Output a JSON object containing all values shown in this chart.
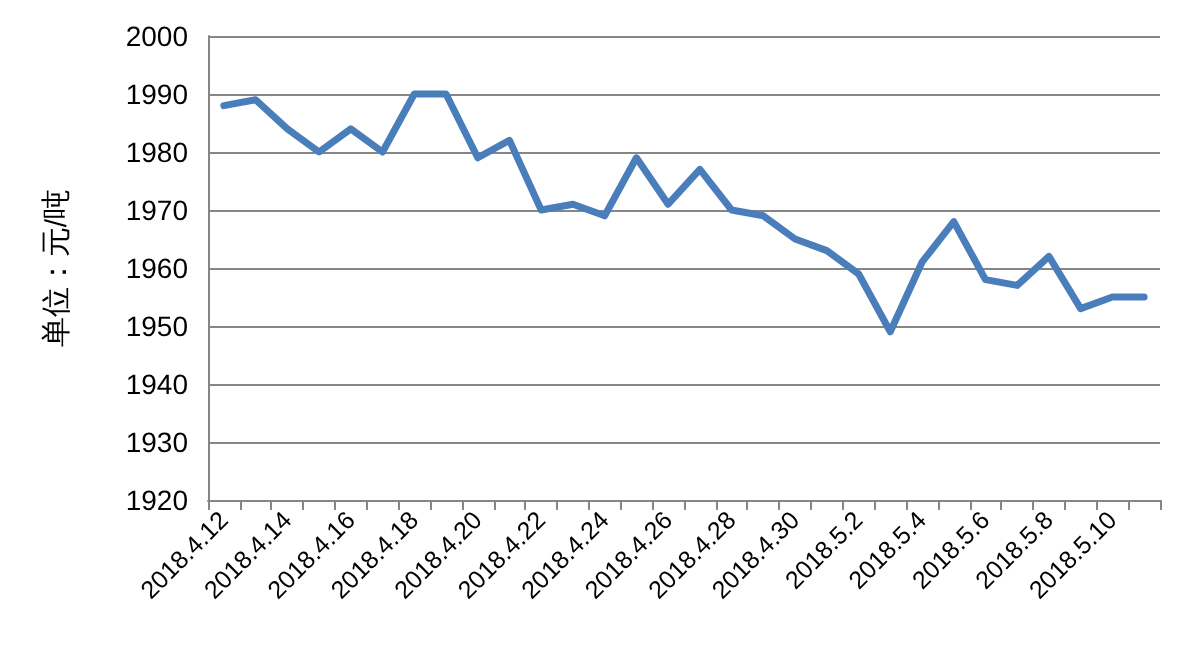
{
  "chart_data": {
    "type": "line",
    "ylabel": "单位：元/吨",
    "categories": [
      "2018.4.12",
      null,
      "2018.4.14",
      null,
      "2018.4.16",
      null,
      "2018.4.18",
      null,
      "2018.4.20",
      null,
      "2018.4.22",
      null,
      "2018.4.24",
      null,
      "2018.4.26",
      null,
      "2018.4.28",
      null,
      "2018.4.30",
      null,
      "2018.5.2",
      null,
      "2018.5.4",
      null,
      "2018.5.6",
      null,
      "2018.5.8",
      null,
      "2018.5.10",
      null
    ],
    "series": [
      {
        "color": "#4a7ebb",
        "values": [
          1988,
          1989,
          1984,
          1980,
          1984,
          1980,
          1990,
          1990,
          1979,
          1982,
          1970,
          1971,
          1969,
          1979,
          1971,
          1977,
          1970,
          1969,
          1965,
          1963,
          1959,
          1949,
          1961,
          1968,
          1958,
          1957,
          1962,
          1953,
          1955,
          1955
        ]
      }
    ],
    "ylim": [
      1920,
      2000
    ],
    "yticks": [
      1920,
      1930,
      1940,
      1950,
      1960,
      1970,
      1980,
      1990,
      2000
    ],
    "grid": "y",
    "marker": "none",
    "line_style": "solid"
  }
}
